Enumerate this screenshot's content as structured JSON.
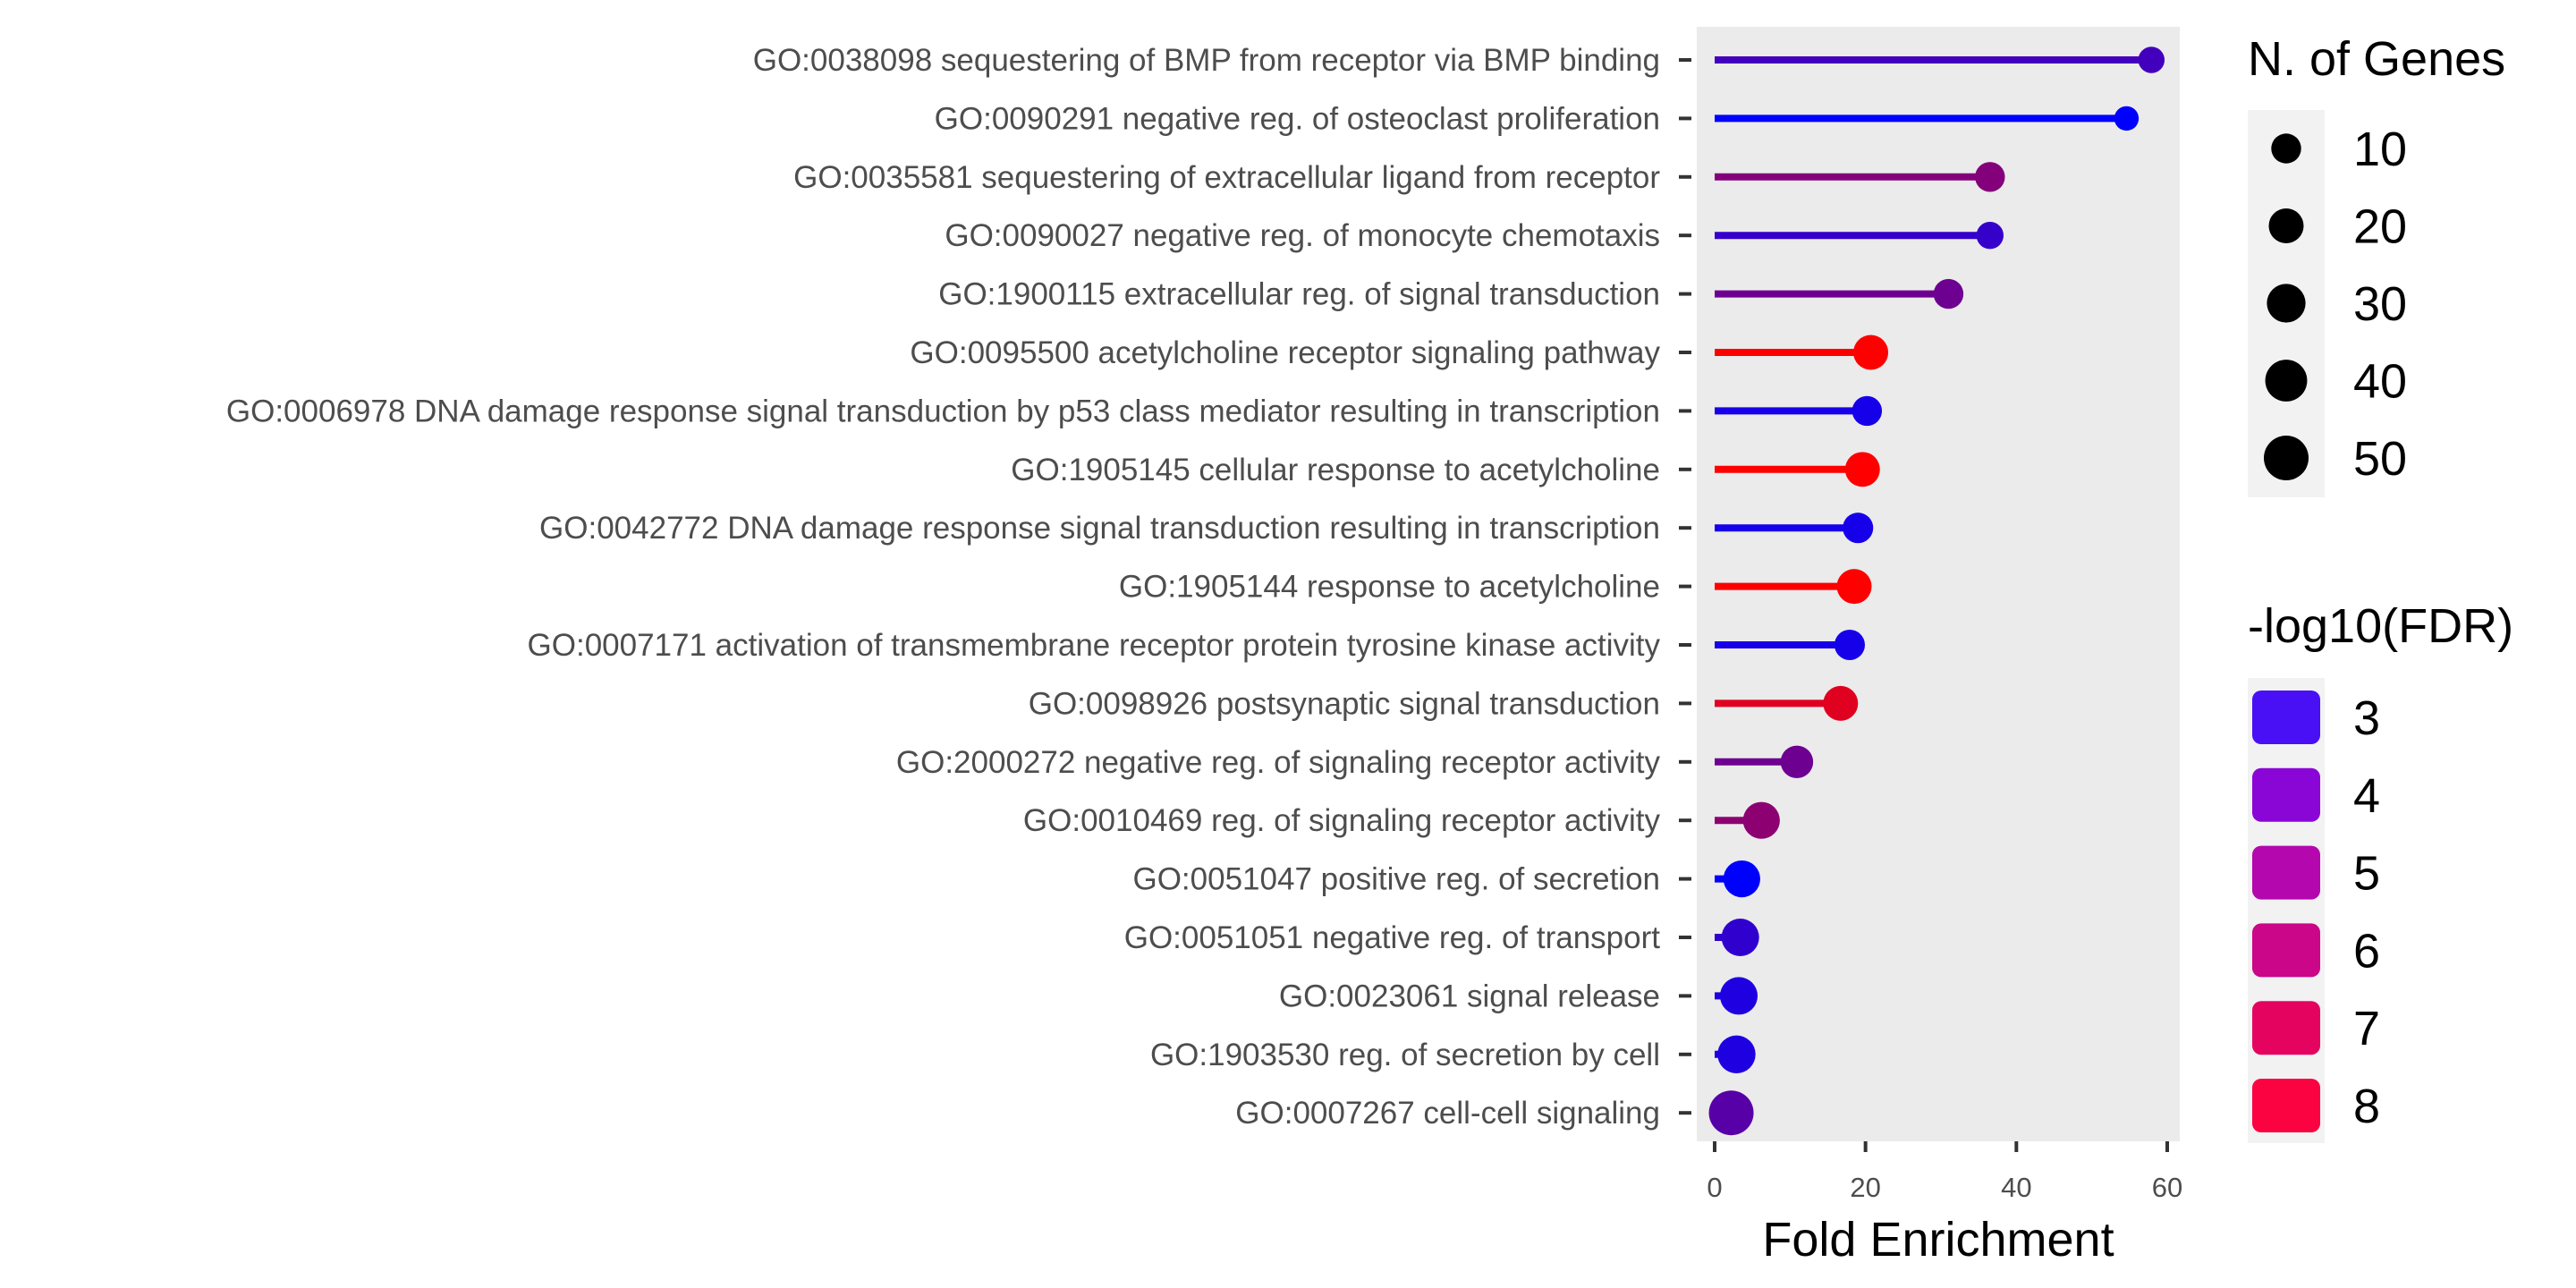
{
  "chart_data": {
    "type": "lollipop",
    "xlabel": "Fold Enrichment",
    "xlim": [
      -3,
      65
    ],
    "xticks": [
      0,
      20,
      40,
      60
    ],
    "terms": [
      {
        "label": "GO:0038098 sequestering of BMP from receptor via BMP binding",
        "fold_enrichment": 57.9,
        "n_genes": 5,
        "neg_log10_fdr": 4.0
      },
      {
        "label": "GO:0090291 negative reg. of osteoclast proliferation",
        "fold_enrichment": 54.6,
        "n_genes": 3,
        "neg_log10_fdr": 2.5
      },
      {
        "label": "GO:0035581 sequestering of extracellular ligand from receptor",
        "fold_enrichment": 36.5,
        "n_genes": 10,
        "neg_log10_fdr": 5.5
      },
      {
        "label": "GO:0090027 negative reg. of monocyte chemotaxis",
        "fold_enrichment": 36.5,
        "n_genes": 6,
        "neg_log10_fdr": 3.7
      },
      {
        "label": "GO:1900115 extracellular reg. of signal transduction",
        "fold_enrichment": 31.0,
        "n_genes": 10,
        "neg_log10_fdr": 5.0
      },
      {
        "label": "GO:0095500 acetylcholine receptor signaling pathway",
        "fold_enrichment": 20.7,
        "n_genes": 20,
        "neg_log10_fdr": 8.3
      },
      {
        "label": "GO:0006978 DNA damage response signal transduction by p53 class mediator resulting in transcription",
        "fold_enrichment": 20.2,
        "n_genes": 10,
        "neg_log10_fdr": 3.0
      },
      {
        "label": "GO:1905145 cellular response to acetylcholine",
        "fold_enrichment": 19.6,
        "n_genes": 20,
        "neg_log10_fdr": 8.3
      },
      {
        "label": "GO:0042772 DNA damage response signal transduction resulting in transcription",
        "fold_enrichment": 19.0,
        "n_genes": 11,
        "neg_log10_fdr": 3.0
      },
      {
        "label": "GO:1905144 response to acetylcholine",
        "fold_enrichment": 18.5,
        "n_genes": 20,
        "neg_log10_fdr": 8.3
      },
      {
        "label": "GO:0007171 activation of transmembrane receptor protein tyrosine kinase activity",
        "fold_enrichment": 17.9,
        "n_genes": 11,
        "neg_log10_fdr": 3.0
      },
      {
        "label": "GO:0098926 postsynaptic signal transduction",
        "fold_enrichment": 16.7,
        "n_genes": 20,
        "neg_log10_fdr": 7.6
      },
      {
        "label": "GO:2000272 negative reg. of signaling receptor activity",
        "fold_enrichment": 10.9,
        "n_genes": 15,
        "neg_log10_fdr": 5.0
      },
      {
        "label": "GO:0010469 reg. of signaling receptor activity",
        "fold_enrichment": 6.2,
        "n_genes": 25,
        "neg_log10_fdr": 5.7
      },
      {
        "label": "GO:0051047 positive reg. of secretion",
        "fold_enrichment": 3.6,
        "n_genes": 25,
        "neg_log10_fdr": 2.5
      },
      {
        "label": "GO:0051051 negative reg. of transport",
        "fold_enrichment": 3.4,
        "n_genes": 27,
        "neg_log10_fdr": 3.6
      },
      {
        "label": "GO:0023061 signal release",
        "fold_enrichment": 3.2,
        "n_genes": 27,
        "neg_log10_fdr": 3.2
      },
      {
        "label": "GO:1903530 reg. of secretion by cell",
        "fold_enrichment": 2.9,
        "n_genes": 28,
        "neg_log10_fdr": 3.2
      },
      {
        "label": "GO:0007267 cell-cell signaling",
        "fold_enrichment": 2.2,
        "n_genes": 50,
        "neg_log10_fdr": 4.5
      }
    ],
    "size_legend": {
      "title": "N. of Genes",
      "values": [
        10,
        20,
        30,
        40,
        50
      ]
    },
    "color_legend": {
      "title": "-log10(FDR)",
      "values": [
        3,
        4,
        5,
        6,
        7,
        8
      ],
      "colors": [
        "#4a10f5",
        "#8a06d6",
        "#b407ae",
        "#cc0689",
        "#e40460",
        "#fb0240"
      ]
    },
    "color_scale": {
      "min": 2.5,
      "max": 8.3,
      "low": "#0000ff",
      "high": "#ff0000"
    },
    "panel_background": "#ebebeb",
    "legend_key_background": "#f2f2f2",
    "grid": false
  }
}
